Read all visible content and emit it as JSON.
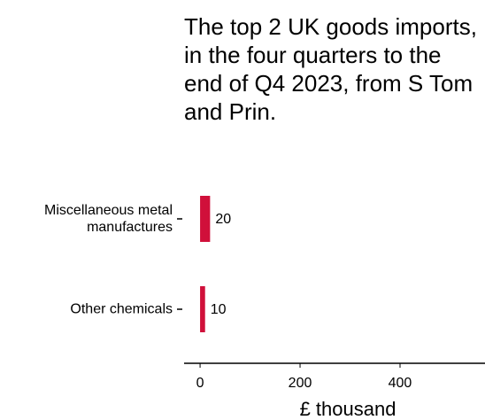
{
  "chart_data": {
    "type": "bar",
    "orientation": "horizontal",
    "title": "The top 2 UK goods imports, in the four quarters to the end of Q4 2023, from S Tom and Prin.",
    "categories": [
      "Miscellaneous metal manufactures",
      "Other chemicals"
    ],
    "values": [
      20,
      10
    ],
    "color": "#d0103a",
    "xlabel": "£ thousand",
    "xlim": [
      -32,
      570
    ],
    "xticks": [
      0,
      200,
      400,
      600
    ]
  }
}
